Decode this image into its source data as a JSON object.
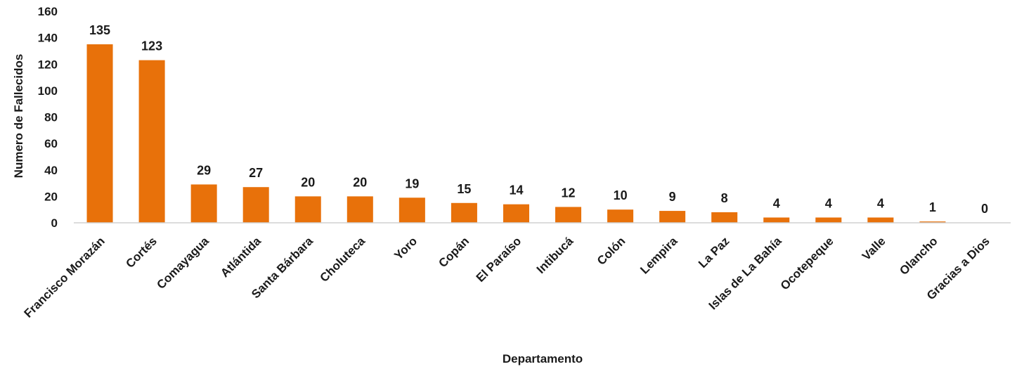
{
  "chart_data": {
    "type": "bar",
    "title": "",
    "xlabel": "Departamento",
    "ylabel": "Numero de Fallecidos",
    "ylim": [
      0,
      160
    ],
    "yticks": [
      0,
      20,
      40,
      60,
      80,
      100,
      120,
      140,
      160
    ],
    "grid": false,
    "legend": "none",
    "bar_color": "#E8710A",
    "categories": [
      "Francisco Morazán",
      "Cortés",
      "Comayagua",
      "Atlántida",
      "Santa Bárbara",
      "Choluteca",
      "Yoro",
      "Copán",
      "El Paraíso",
      "Intibucá",
      "Colón",
      "Lempira",
      "La Paz",
      "Islas de La Bahía",
      "Ocotepeque",
      "Valle",
      "Olancho",
      "Gracias a Dios"
    ],
    "values": [
      135,
      123,
      29,
      27,
      20,
      20,
      19,
      15,
      14,
      12,
      10,
      9,
      8,
      4,
      4,
      4,
      1,
      0
    ]
  }
}
